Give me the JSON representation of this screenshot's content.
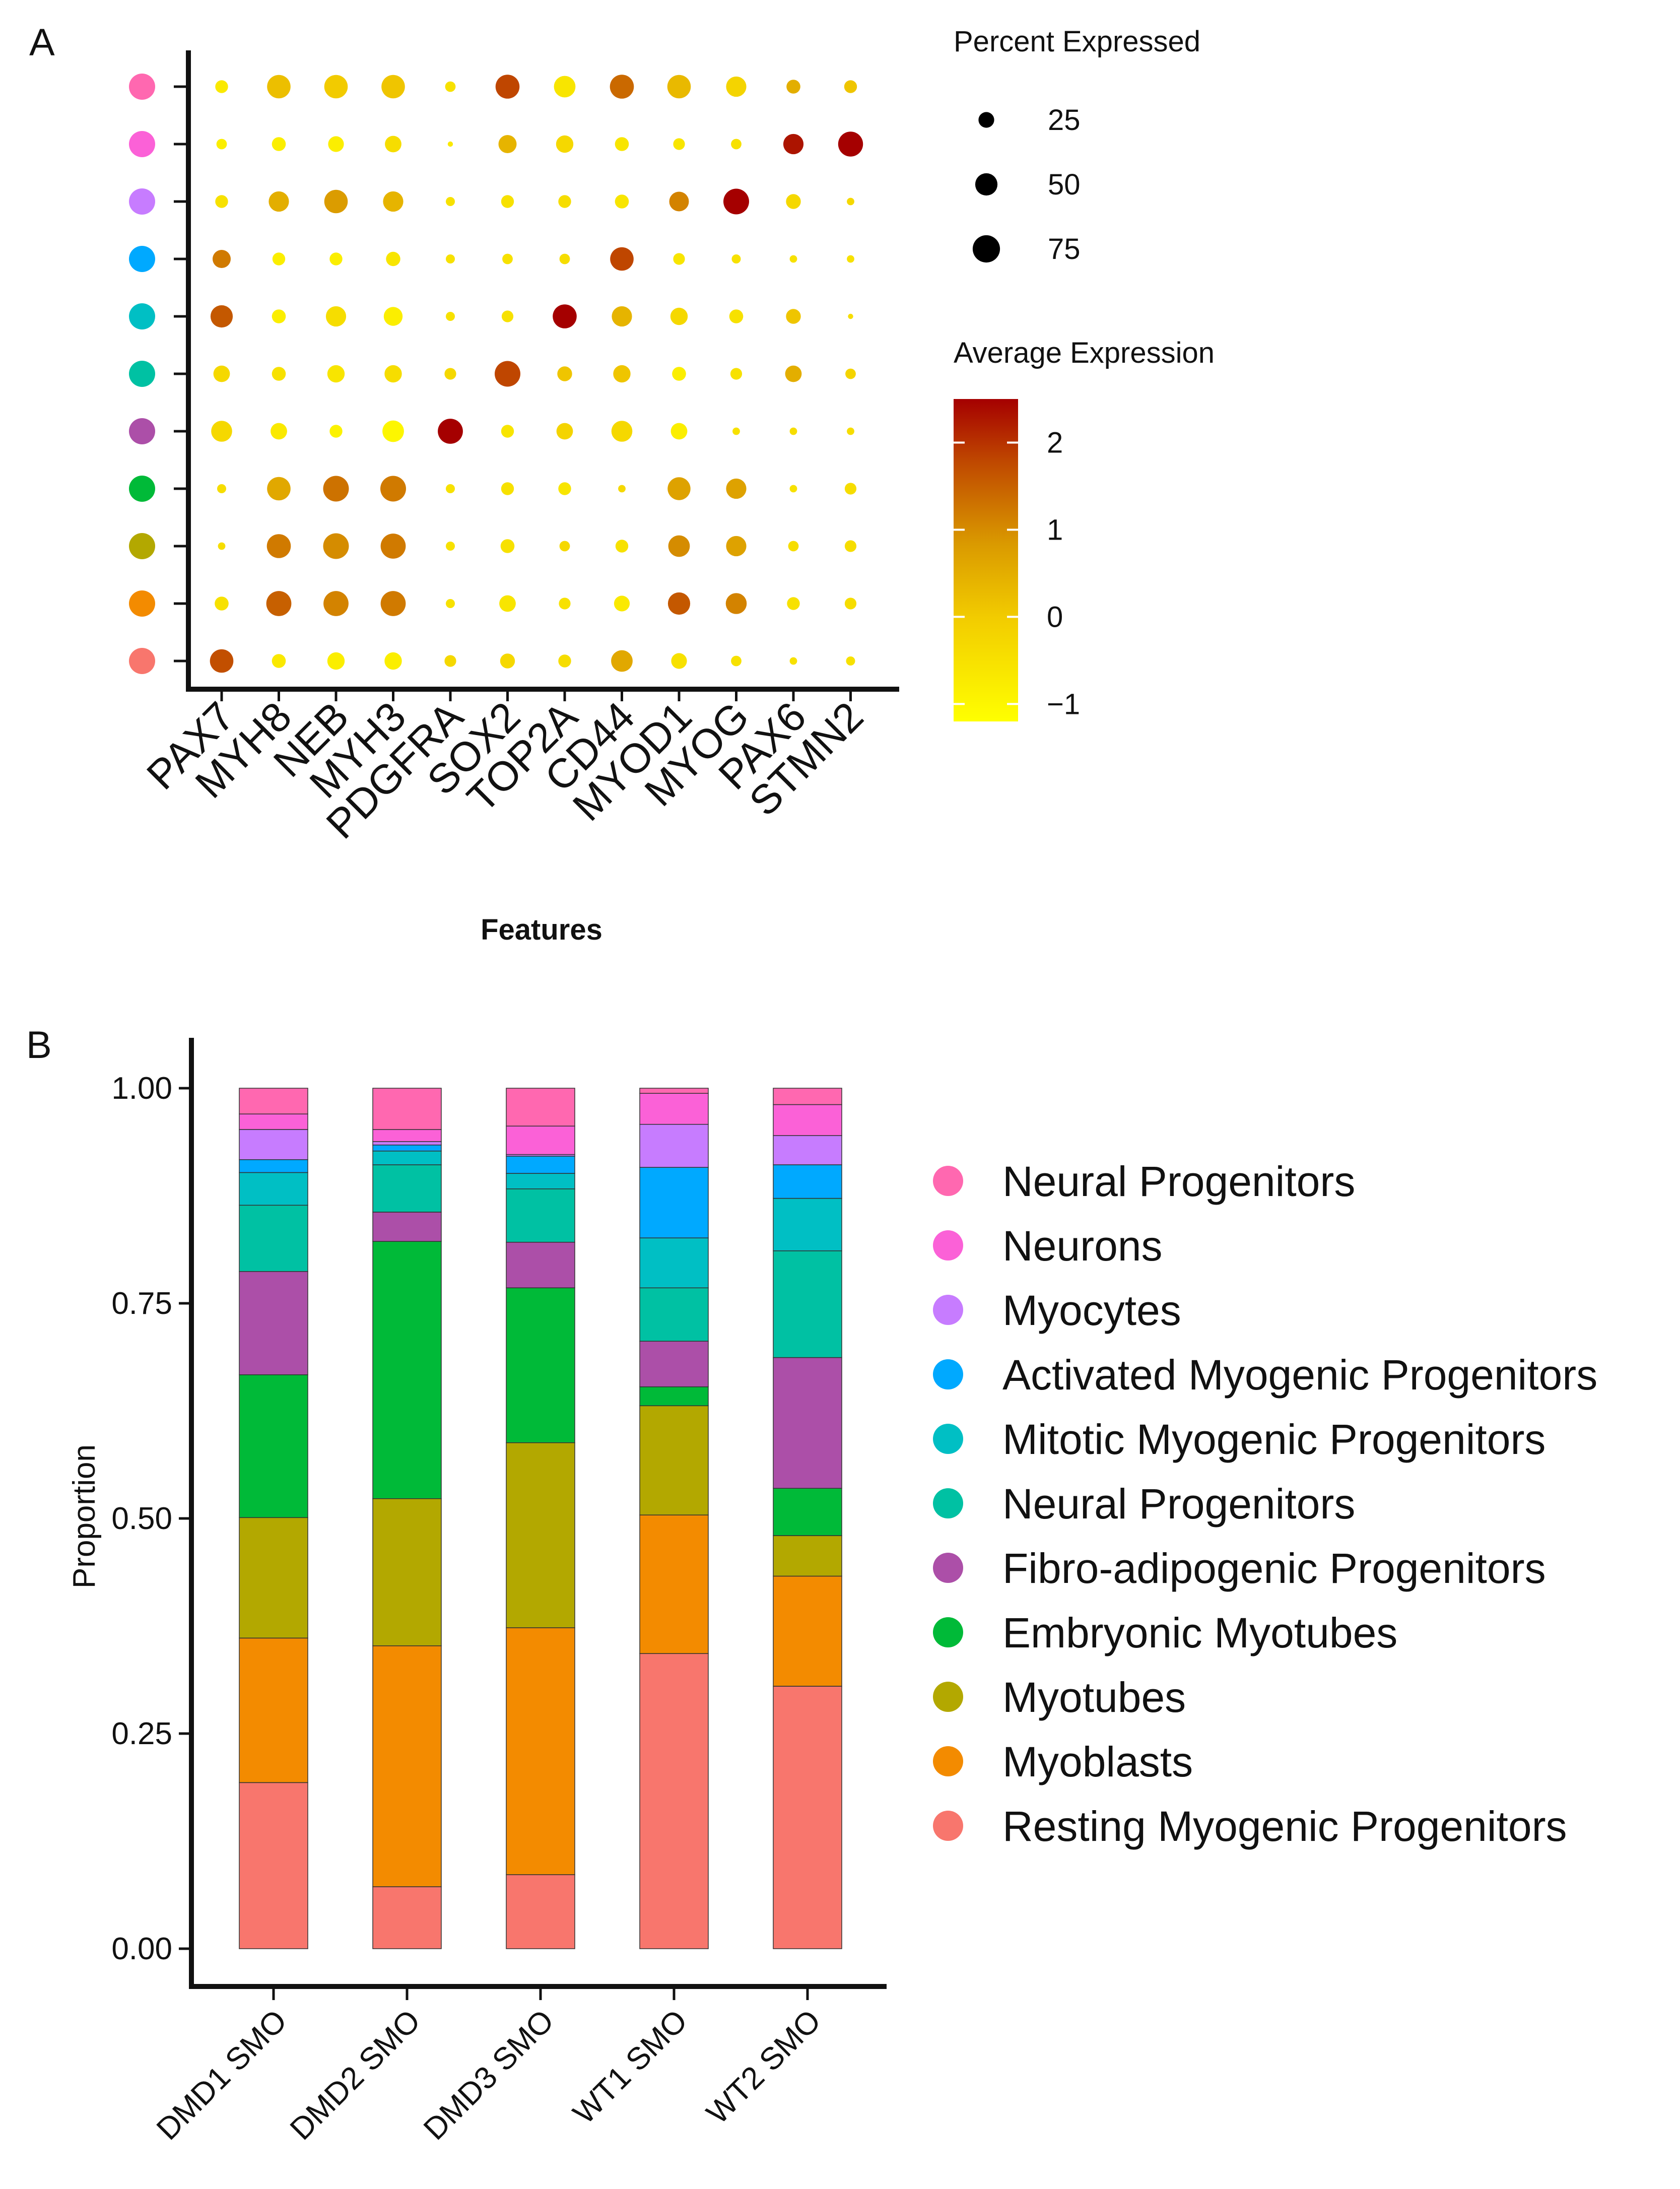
{
  "chart_data": [
    {
      "panel": "A",
      "type": "dotplot",
      "xlabel": "Features",
      "features": [
        "PAX7",
        "MYH8",
        "NEB",
        "MYH3",
        "PDGFRA",
        "SOX2",
        "TOP2A",
        "CD44",
        "MYOD1",
        "MYOG",
        "PAX6",
        "STMN2"
      ],
      "rows": [
        {
          "group": "Neural Progenitors",
          "color": "#FF68B0",
          "pct": [
            12,
            40,
            40,
            40,
            8,
            42,
            34,
            42,
            40,
            30,
            14,
            12
          ],
          "avg": [
            -0.7,
            0.2,
            0,
            0.1,
            -0.5,
            1.8,
            -0.6,
            1.4,
            0.3,
            -0.2,
            0.5,
            0.1
          ]
        },
        {
          "group": "Neurons",
          "color": "#FB61D7",
          "pct": [
            8,
            14,
            18,
            20,
            2,
            24,
            22,
            14,
            10,
            8,
            30,
            45
          ],
          "avg": [
            -0.8,
            -0.8,
            -0.8,
            -0.4,
            -0.7,
            0.4,
            -0.3,
            -0.6,
            -0.6,
            -0.5,
            2.3,
            2.6
          ]
        },
        {
          "group": "Myocytes",
          "color": "#C77CFF",
          "pct": [
            12,
            30,
            40,
            30,
            6,
            12,
            12,
            14,
            28,
            48,
            16,
            4
          ],
          "avg": [
            -0.5,
            0.5,
            0.8,
            0.4,
            -0.5,
            -0.5,
            -0.4,
            -0.6,
            1.1,
            2.6,
            -0.3,
            -0.3
          ]
        },
        {
          "group": "Activated Myogenic Progenitors",
          "color": "#00A9FF",
          "pct": [
            24,
            12,
            12,
            15,
            6,
            8,
            8,
            40,
            10,
            6,
            4,
            4
          ],
          "avg": [
            1.2,
            -0.8,
            -0.8,
            -0.6,
            -0.5,
            -0.5,
            -0.4,
            1.8,
            -0.6,
            -0.5,
            -0.5,
            -0.5
          ]
        },
        {
          "group": "Mitotic Myogenic Progenitors",
          "color": "#00BFC4",
          "pct": [
            36,
            14,
            30,
            26,
            6,
            10,
            42,
            30,
            22,
            14,
            16,
            2
          ],
          "avg": [
            1.6,
            -0.8,
            -0.4,
            -0.8,
            -0.5,
            -0.5,
            2.6,
            0.4,
            -0.3,
            -0.5,
            0.1,
            -0.4
          ]
        },
        {
          "group": "Neural Progenitors",
          "color": "#00C1A3",
          "pct": [
            20,
            14,
            22,
            22,
            10,
            48,
            16,
            22,
            14,
            10,
            20,
            8
          ],
          "avg": [
            -0.3,
            -0.5,
            -0.6,
            -0.4,
            -0.3,
            1.8,
            0.1,
            0.1,
            -0.8,
            -0.5,
            0.5,
            -0.2
          ]
        },
        {
          "group": "Fibro-adipogenic Progenitors",
          "color": "#AC4FA8",
          "pct": [
            32,
            20,
            12,
            34,
            46,
            12,
            20,
            32,
            20,
            4,
            4,
            4
          ],
          "avg": [
            -0.3,
            -0.7,
            -0.9,
            -1.0,
            2.6,
            -0.6,
            -0.2,
            -0.3,
            -0.8,
            -0.5,
            -0.4,
            -0.4
          ]
        },
        {
          "group": "Embryonic Myotubes",
          "color": "#00BA38",
          "pct": [
            6,
            40,
            48,
            48,
            6,
            12,
            12,
            4,
            38,
            30,
            4,
            10
          ],
          "avg": [
            -0.4,
            0.6,
            1.3,
            1.2,
            -0.5,
            -0.5,
            -0.6,
            -0.3,
            0.7,
            0.7,
            -0.5,
            -0.4
          ]
        },
        {
          "group": "Myotubes",
          "color": "#B3A800",
          "pct": [
            4,
            42,
            48,
            46,
            6,
            14,
            8,
            12,
            34,
            30,
            8,
            10
          ],
          "avg": [
            -0.4,
            1.2,
            1.0,
            1.2,
            -0.5,
            -0.5,
            -0.3,
            -0.5,
            1.0,
            0.7,
            -0.4,
            -0.4
          ]
        },
        {
          "group": "Myoblasts",
          "color": "#F38B00",
          "pct": [
            14,
            46,
            46,
            46,
            6,
            20,
            10,
            18,
            36,
            32,
            12,
            10
          ],
          "avg": [
            -0.5,
            1.5,
            1.1,
            1.2,
            -0.5,
            -0.6,
            -0.5,
            -0.7,
            1.6,
            1.1,
            -0.5,
            -0.4
          ]
        },
        {
          "group": "Resting Myogenic Progenitors",
          "color": "#F8766D",
          "pct": [
            40,
            14,
            22,
            22,
            10,
            16,
            12,
            34,
            18,
            8,
            4,
            6
          ],
          "avg": [
            1.7,
            -0.7,
            -0.8,
            -0.8,
            -0.3,
            -0.3,
            -0.4,
            0.6,
            -0.5,
            -0.5,
            -0.5,
            -0.5
          ]
        }
      ],
      "size_legend": {
        "title": "Percent Expressed",
        "labels": [
          "25",
          "50",
          "75"
        ],
        "values": [
          25,
          50,
          75
        ]
      },
      "color_legend": {
        "title": "Average Expression",
        "ticks": [
          "2",
          "1",
          "0",
          "−1"
        ],
        "tick_values": [
          2,
          1,
          0,
          -1
        ],
        "range": [
          -1.2,
          2.5
        ],
        "low_color": "#FFFF00",
        "mid_color": "#DA9A00",
        "high_color": "#A50000"
      }
    },
    {
      "panel": "B",
      "type": "stacked_bar",
      "ylabel": "Proportion",
      "ylim": [
        0,
        1
      ],
      "yticks": [
        "0.00",
        "0.25",
        "0.50",
        "0.75",
        "1.00"
      ],
      "ytick_values": [
        0,
        0.25,
        0.5,
        0.75,
        1.0
      ],
      "categories": [
        "DMD1 SMO",
        "DMD2 SMO",
        "DMD3 SMO",
        "WT1 SMO",
        "WT2 SMO"
      ],
      "series": [
        {
          "name": "Resting Myogenic Progenitors",
          "color": "#F8766D",
          "values": [
            0.193,
            0.072,
            0.086,
            0.343,
            0.305
          ]
        },
        {
          "name": "Myoblasts",
          "color": "#F38B00",
          "values": [
            0.168,
            0.28,
            0.287,
            0.161,
            0.128
          ]
        },
        {
          "name": "Myotubes",
          "color": "#B3A800",
          "values": [
            0.14,
            0.171,
            0.215,
            0.127,
            0.047
          ]
        },
        {
          "name": "Embryonic Myotubes",
          "color": "#00BA38",
          "values": [
            0.166,
            0.299,
            0.18,
            0.022,
            0.055
          ]
        },
        {
          "name": "Fibro-adipogenic Progenitors",
          "color": "#AC4FA8",
          "values": [
            0.12,
            0.034,
            0.053,
            0.053,
            0.152
          ]
        },
        {
          "name": "Neural Progenitors",
          "color": "#00C1A3",
          "values": [
            0.077,
            0.055,
            0.062,
            0.062,
            0.124
          ]
        },
        {
          "name": "Mitotic Myogenic Progenitors",
          "color": "#00BFC4",
          "values": [
            0.038,
            0.016,
            0.018,
            0.058,
            0.061
          ]
        },
        {
          "name": "Activated Myogenic Progenitors",
          "color": "#00A9FF",
          "values": [
            0.015,
            0.007,
            0.02,
            0.082,
            0.039
          ]
        },
        {
          "name": "Myocytes",
          "color": "#C77CFF",
          "values": [
            0.035,
            0.004,
            0.002,
            0.05,
            0.034
          ]
        },
        {
          "name": "Neurons",
          "color": "#FB61D7",
          "values": [
            0.018,
            0.014,
            0.033,
            0.036,
            0.036
          ]
        },
        {
          "name": "Neural Progenitors",
          "color": "#FF68B0",
          "values": [
            0.03,
            0.048,
            0.044,
            0.006,
            0.019
          ]
        }
      ],
      "legend": [
        {
          "name": "Neural Progenitors",
          "color": "#FF68B0"
        },
        {
          "name": "Neurons",
          "color": "#FB61D7"
        },
        {
          "name": "Myocytes",
          "color": "#C77CFF"
        },
        {
          "name": "Activated Myogenic Progenitors",
          "color": "#00A9FF"
        },
        {
          "name": "Mitotic Myogenic Progenitors",
          "color": "#00BFC4"
        },
        {
          "name": "Neural Progenitors",
          "color": "#00C1A3"
        },
        {
          "name": "Fibro-adipogenic Progenitors",
          "color": "#AC4FA8"
        },
        {
          "name": "Embryonic Myotubes",
          "color": "#00BA38"
        },
        {
          "name": "Myotubes",
          "color": "#B3A800"
        },
        {
          "name": "Myoblasts",
          "color": "#F38B00"
        },
        {
          "name": "Resting Myogenic Progenitors",
          "color": "#F8766D"
        }
      ]
    }
  ],
  "panel_labels": {
    "a": "A",
    "b": "B"
  }
}
